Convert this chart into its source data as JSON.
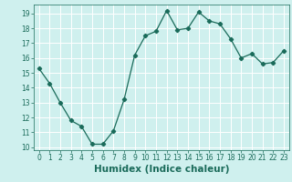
{
  "x": [
    0,
    1,
    2,
    3,
    4,
    5,
    6,
    7,
    8,
    9,
    10,
    11,
    12,
    13,
    14,
    15,
    16,
    17,
    18,
    19,
    20,
    21,
    22,
    23
  ],
  "y": [
    15.3,
    14.3,
    13.0,
    11.8,
    11.4,
    10.2,
    10.2,
    11.1,
    13.2,
    16.2,
    17.5,
    17.8,
    19.2,
    17.9,
    18.0,
    19.1,
    18.5,
    18.3,
    17.3,
    16.0,
    16.3,
    15.6,
    15.7,
    16.5
  ],
  "line_color": "#1a6b5a",
  "marker": "D",
  "marker_size": 2.2,
  "bg_color": "#cff0ee",
  "grid_color": "#ffffff",
  "xlabel": "Humidex (Indice chaleur)",
  "ylim": [
    9.8,
    19.6
  ],
  "xlim": [
    -0.5,
    23.5
  ],
  "yticks": [
    10,
    11,
    12,
    13,
    14,
    15,
    16,
    17,
    18,
    19
  ],
  "xticks": [
    0,
    1,
    2,
    3,
    4,
    5,
    6,
    7,
    8,
    9,
    10,
    11,
    12,
    13,
    14,
    15,
    16,
    17,
    18,
    19,
    20,
    21,
    22,
    23
  ],
  "tick_labelsize": 5.5,
  "xlabel_fontsize": 7.5,
  "linewidth": 0.9
}
